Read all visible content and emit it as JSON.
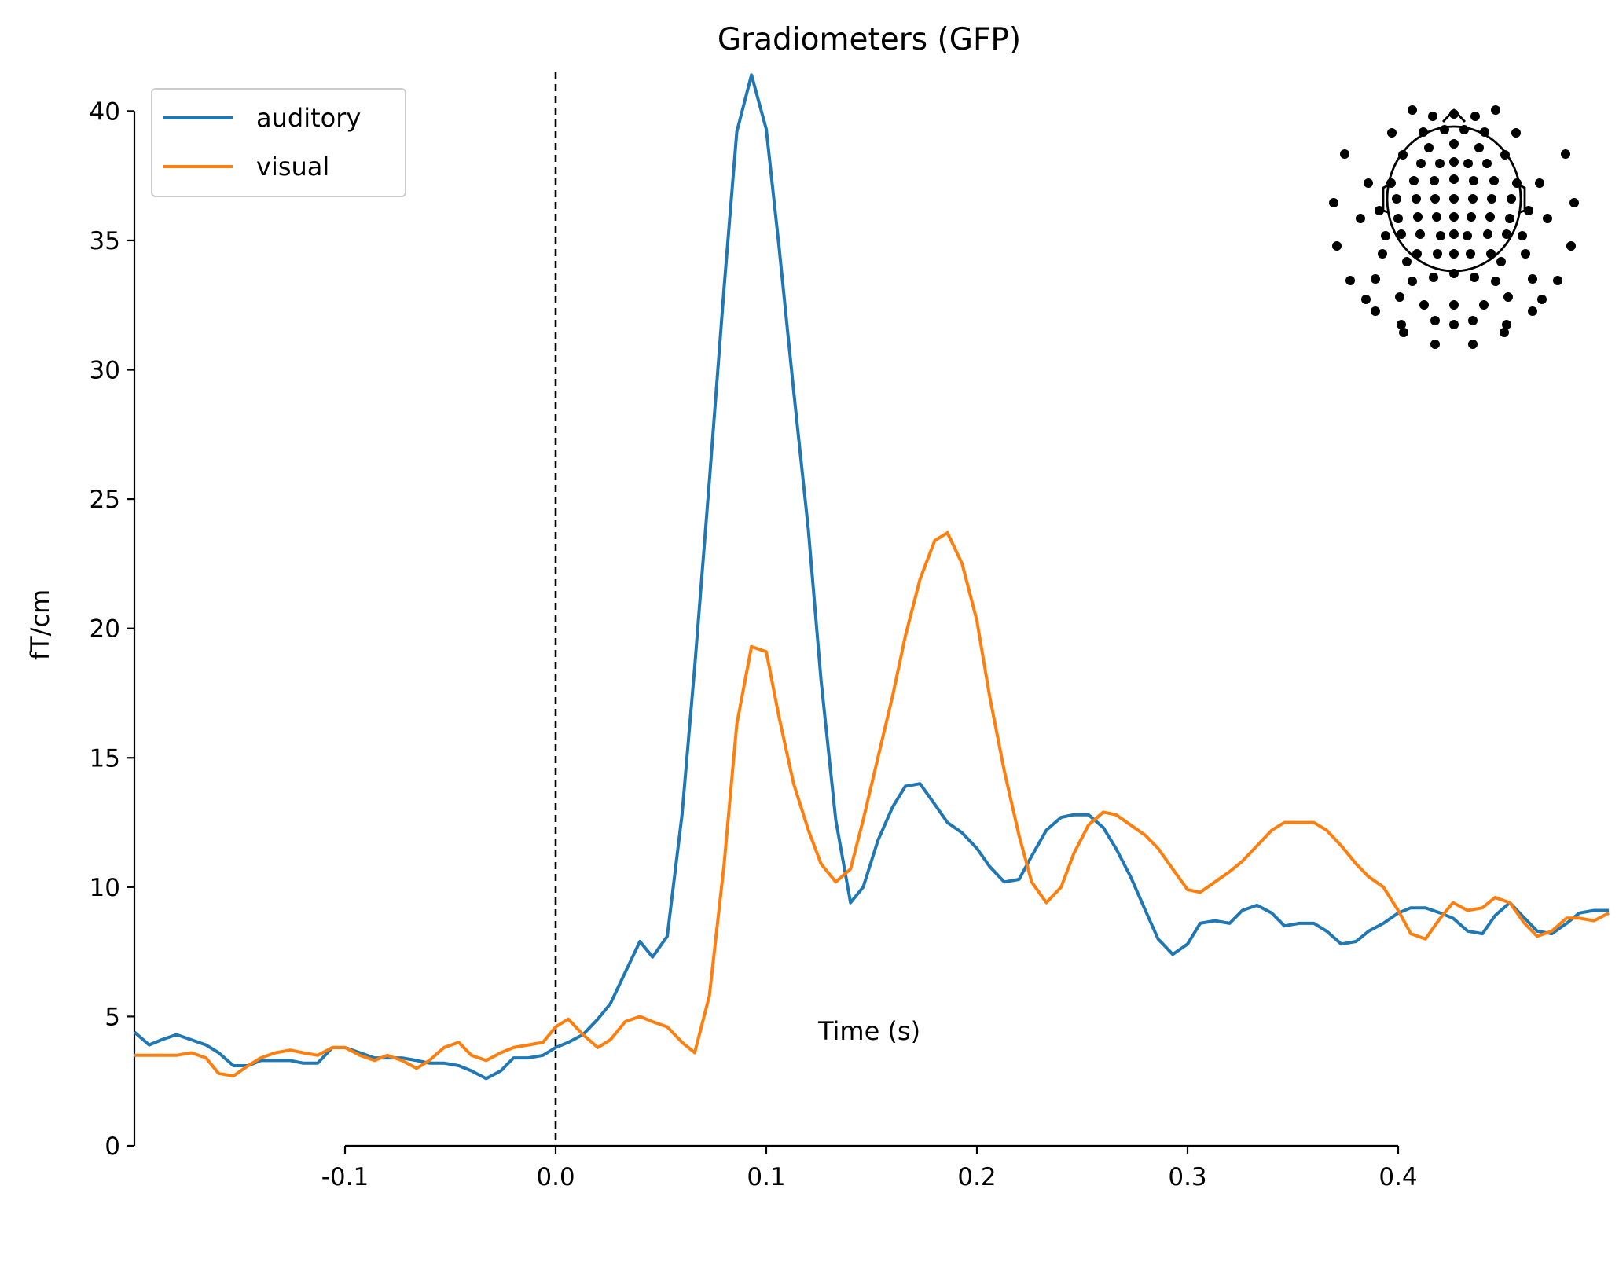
{
  "chart_data": {
    "type": "line",
    "title": "Gradiometers (GFP)",
    "xlabel": "Time (s)",
    "ylabel": "fT/cm",
    "xlim": [
      -0.2,
      0.5
    ],
    "ylim": [
      0,
      41.5
    ],
    "xticks": [
      -0.1,
      0.0,
      0.1,
      0.2,
      0.3,
      0.4
    ],
    "xtick_labels": [
      "-0.1",
      "0.0",
      "0.1",
      "0.2",
      "0.3",
      "0.4"
    ],
    "yticks": [
      0,
      5,
      10,
      15,
      20,
      25,
      30,
      35,
      40
    ],
    "ytick_labels": [
      "0",
      "5",
      "10",
      "15",
      "20",
      "25",
      "30",
      "35",
      "40"
    ],
    "grid": false,
    "legend": "top-left",
    "event_line": {
      "x": 0.0,
      "style": "dashed",
      "color": "#000000"
    },
    "inset": "sensor-layout-topomap (top-right)",
    "series": [
      {
        "name": "auditory",
        "color": "#1f77b4",
        "x": [
          -0.2,
          -0.193,
          -0.187,
          -0.18,
          -0.173,
          -0.166,
          -0.16,
          -0.153,
          -0.146,
          -0.14,
          -0.133,
          -0.126,
          -0.12,
          -0.113,
          -0.106,
          -0.1,
          -0.093,
          -0.086,
          -0.08,
          -0.073,
          -0.066,
          -0.06,
          -0.053,
          -0.046,
          -0.04,
          -0.033,
          -0.026,
          -0.02,
          -0.013,
          -0.006,
          0.0,
          0.006,
          0.013,
          0.02,
          0.026,
          0.033,
          0.04,
          0.046,
          0.053,
          0.06,
          0.066,
          0.073,
          0.08,
          0.086,
          0.093,
          0.1,
          0.106,
          0.113,
          0.12,
          0.126,
          0.133,
          0.14,
          0.146,
          0.153,
          0.16,
          0.166,
          0.173,
          0.18,
          0.186,
          0.193,
          0.2,
          0.206,
          0.213,
          0.22,
          0.226,
          0.233,
          0.24,
          0.246,
          0.253,
          0.26,
          0.266,
          0.273,
          0.28,
          0.286,
          0.293,
          0.3,
          0.306,
          0.313,
          0.32,
          0.326,
          0.333,
          0.34,
          0.346,
          0.353,
          0.36,
          0.366,
          0.373,
          0.38,
          0.386,
          0.393,
          0.4,
          0.406,
          0.413,
          0.42,
          0.426,
          0.433,
          0.44,
          0.446,
          0.453,
          0.46,
          0.466,
          0.473,
          0.48,
          0.486,
          0.493,
          0.5
        ],
        "values": [
          4.4,
          3.9,
          4.1,
          4.3,
          4.1,
          3.9,
          3.6,
          3.1,
          3.1,
          3.3,
          3.3,
          3.3,
          3.2,
          3.2,
          3.8,
          3.8,
          3.6,
          3.4,
          3.4,
          3.4,
          3.3,
          3.2,
          3.2,
          3.1,
          2.9,
          2.6,
          2.9,
          3.4,
          3.4,
          3.5,
          3.8,
          4.0,
          4.3,
          4.9,
          5.5,
          6.7,
          7.9,
          7.3,
          8.1,
          12.8,
          18.5,
          25.7,
          33.2,
          39.2,
          41.4,
          39.3,
          34.8,
          29.2,
          23.8,
          18.0,
          12.6,
          9.4,
          10.0,
          11.8,
          13.1,
          13.9,
          14.0,
          13.2,
          12.5,
          12.1,
          11.5,
          10.8,
          10.2,
          10.3,
          11.2,
          12.2,
          12.7,
          12.8,
          12.8,
          12.3,
          11.5,
          10.4,
          9.1,
          8.0,
          7.4,
          7.8,
          8.6,
          8.7,
          8.6,
          9.1,
          9.3,
          9.0,
          8.5,
          8.6,
          8.6,
          8.3,
          7.8,
          7.9,
          8.3,
          8.6,
          9.0,
          9.2,
          9.2,
          9.0,
          8.8,
          8.3,
          8.2,
          8.9,
          9.4,
          8.8,
          8.3,
          8.2,
          8.6,
          9.0,
          9.1,
          9.1
        ]
      },
      {
        "name": "visual",
        "color": "#ff7f0e",
        "x": [
          -0.2,
          -0.193,
          -0.187,
          -0.18,
          -0.173,
          -0.166,
          -0.16,
          -0.153,
          -0.146,
          -0.14,
          -0.133,
          -0.126,
          -0.12,
          -0.113,
          -0.106,
          -0.1,
          -0.093,
          -0.086,
          -0.08,
          -0.073,
          -0.066,
          -0.06,
          -0.053,
          -0.046,
          -0.04,
          -0.033,
          -0.026,
          -0.02,
          -0.013,
          -0.006,
          0.0,
          0.006,
          0.013,
          0.02,
          0.026,
          0.033,
          0.04,
          0.046,
          0.053,
          0.06,
          0.066,
          0.073,
          0.08,
          0.086,
          0.093,
          0.1,
          0.106,
          0.113,
          0.12,
          0.126,
          0.133,
          0.14,
          0.146,
          0.153,
          0.16,
          0.166,
          0.173,
          0.18,
          0.186,
          0.193,
          0.2,
          0.206,
          0.213,
          0.22,
          0.226,
          0.233,
          0.24,
          0.246,
          0.253,
          0.26,
          0.266,
          0.273,
          0.28,
          0.286,
          0.293,
          0.3,
          0.306,
          0.313,
          0.32,
          0.326,
          0.333,
          0.34,
          0.346,
          0.353,
          0.36,
          0.366,
          0.373,
          0.38,
          0.386,
          0.393,
          0.4,
          0.406,
          0.413,
          0.42,
          0.426,
          0.433,
          0.44,
          0.446,
          0.453,
          0.46,
          0.466,
          0.473,
          0.48,
          0.486,
          0.493,
          0.5
        ],
        "values": [
          3.5,
          3.5,
          3.5,
          3.5,
          3.6,
          3.4,
          2.8,
          2.7,
          3.1,
          3.4,
          3.6,
          3.7,
          3.6,
          3.5,
          3.8,
          3.8,
          3.5,
          3.3,
          3.5,
          3.3,
          3.0,
          3.3,
          3.8,
          4.0,
          3.5,
          3.3,
          3.6,
          3.8,
          3.9,
          4.0,
          4.6,
          4.9,
          4.3,
          3.8,
          4.1,
          4.8,
          5.0,
          4.8,
          4.6,
          4.0,
          3.6,
          5.8,
          10.9,
          16.3,
          19.3,
          19.1,
          16.6,
          14.0,
          12.2,
          10.9,
          10.2,
          10.7,
          12.6,
          15.0,
          17.4,
          19.7,
          21.9,
          23.4,
          23.7,
          22.5,
          20.3,
          17.4,
          14.5,
          12.0,
          10.2,
          9.4,
          10.0,
          11.3,
          12.4,
          12.9,
          12.8,
          12.4,
          12.0,
          11.5,
          10.7,
          9.9,
          9.8,
          10.2,
          10.6,
          11.0,
          11.6,
          12.2,
          12.5,
          12.5,
          12.5,
          12.2,
          11.6,
          10.9,
          10.4,
          10.0,
          9.1,
          8.2,
          8.0,
          8.8,
          9.4,
          9.1,
          9.2,
          9.6,
          9.4,
          8.6,
          8.1,
          8.3,
          8.8,
          8.8,
          8.7,
          9.0
        ]
      }
    ]
  }
}
